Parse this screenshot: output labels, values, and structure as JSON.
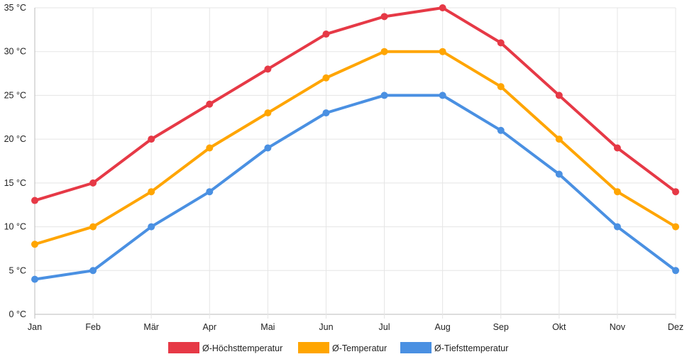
{
  "chart_data": {
    "type": "line",
    "title": "",
    "xlabel": "",
    "ylabel": "",
    "categories": [
      "Jan",
      "Feb",
      "Mär",
      "Apr",
      "Mai",
      "Jun",
      "Jul",
      "Aug",
      "Sep",
      "Okt",
      "Nov",
      "Dez"
    ],
    "ylim": [
      0,
      35
    ],
    "yticks": [
      0,
      5,
      10,
      15,
      20,
      25,
      30,
      35
    ],
    "ytick_labels": [
      "0 °C",
      "5 °C",
      "10 °C",
      "15 °C",
      "20 °C",
      "25 °C",
      "30 °C",
      "35 °C"
    ],
    "grid": true,
    "legend_position": "bottom",
    "series": [
      {
        "name": "Ø-Höchsttemperatur",
        "color": "#e63946",
        "values": [
          13,
          15,
          20,
          24,
          28,
          32,
          34,
          35,
          31,
          25,
          19,
          14
        ]
      },
      {
        "name": "Ø-Temperatur",
        "color": "#ffa500",
        "values": [
          8,
          10,
          14,
          19,
          23,
          27,
          30,
          30,
          26,
          20,
          14,
          10
        ]
      },
      {
        "name": "Ø-Tiefsttemperatur",
        "color": "#4a90e2",
        "values": [
          4,
          5,
          10,
          14,
          19,
          23,
          25,
          25,
          21,
          16,
          10,
          5
        ]
      }
    ]
  }
}
